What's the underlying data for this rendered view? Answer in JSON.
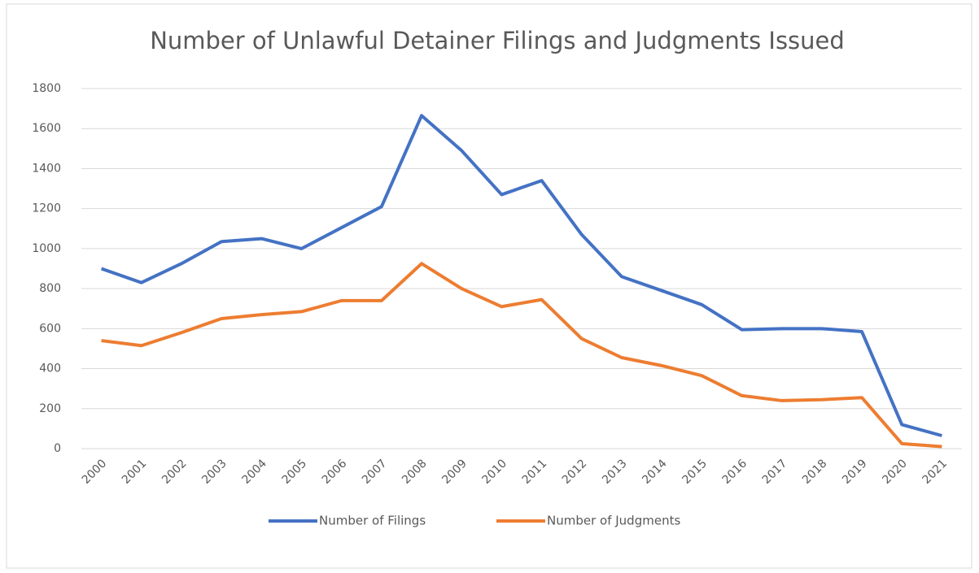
{
  "chart_data": {
    "type": "line",
    "title": "Number of Unlawful Detainer Filings and Judgments Issued",
    "categories": [
      "2000",
      "2001",
      "2002",
      "2003",
      "2004",
      "2005",
      "2006",
      "2007",
      "2008",
      "2009",
      "2010",
      "2011",
      "2012",
      "2013",
      "2014",
      "2015",
      "2016",
      "2017",
      "2018",
      "2019",
      "2020",
      "2021"
    ],
    "series": [
      {
        "name": "Number of Filings",
        "color": "#4472c4",
        "values": [
          900,
          830,
          925,
          1035,
          1050,
          1000,
          1105,
          1210,
          1665,
          1490,
          1270,
          1340,
          1070,
          860,
          790,
          720,
          595,
          600,
          600,
          585,
          120,
          65
        ]
      },
      {
        "name": "Number of Judgments",
        "color": "#ed7d31",
        "values": [
          540,
          515,
          580,
          650,
          670,
          685,
          740,
          740,
          925,
          800,
          710,
          745,
          550,
          455,
          415,
          365,
          265,
          240,
          245,
          255,
          25,
          10
        ]
      }
    ],
    "ylim": [
      0,
      1800
    ],
    "yticks": [
      0,
      200,
      400,
      600,
      800,
      1000,
      1200,
      1400,
      1600,
      1800
    ],
    "grid": true,
    "legend": "bottom"
  }
}
